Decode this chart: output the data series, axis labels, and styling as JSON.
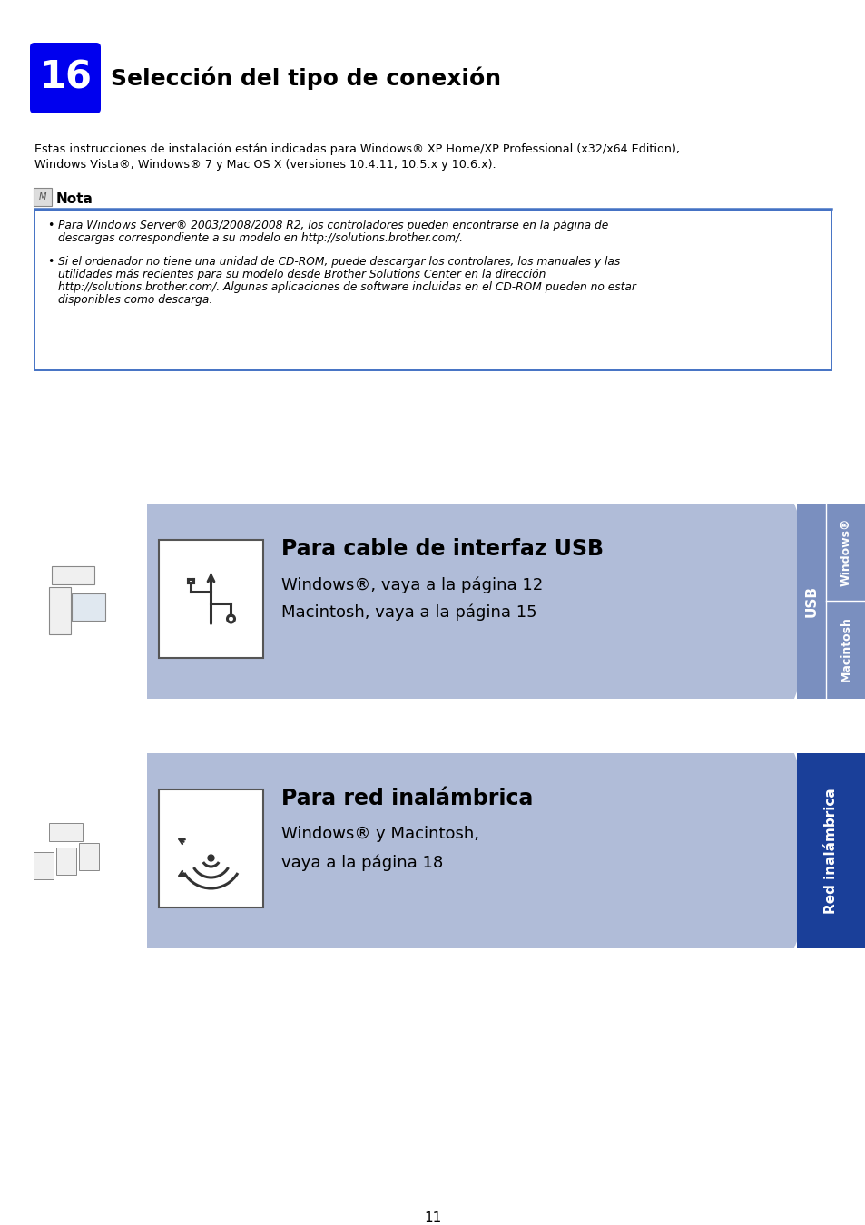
{
  "bg_color": "#ffffff",
  "page_number": "11",
  "step_number": "16",
  "step_bg_color": "#0000ee",
  "step_text_color": "#ffffff",
  "title": "Selección del tipo de conexión",
  "intro_line1": "Estas instrucciones de instalación están indicadas para Windows® XP Home/XP Professional (x32/x64 Edition),",
  "intro_line2": "Windows Vista®, Windows® 7 y Mac OS X (versiones 10.4.11, 10.5.x y 10.6.x).",
  "nota_label": "Nota",
  "nota_border_color": "#4472c4",
  "nota_bullet1_line1": "Para Windows Server® 2003/2008/2008 R2, los controladores pueden encontrarse en la página de",
  "nota_bullet1_line2": "descargas correspondiente a su modelo en http://solutions.brother.com/.",
  "nota_bullet2_line1": "Si el ordenador no tiene una unidad de CD-ROM, puede descargar los controlares, los manuales y las",
  "nota_bullet2_line2": "utilidades más recientes para su modelo desde Brother Solutions Center en la dirección",
  "nota_bullet2_line3": "http://solutions.brother.com/. Algunas aplicaciones de software incluidas en el CD-ROM pueden no estar",
  "nota_bullet2_line4": "disponibles como descarga.",
  "usb_title": "Para cable de interfaz USB",
  "usb_line1": "Windows®, vaya a la página 12",
  "usb_line2": "Macintosh, vaya a la página 15",
  "wifi_title": "Para red inalámbrica",
  "wifi_line1": "Windows® y Macintosh,",
  "wifi_line2": "vaya a la página 18",
  "tab_usb_color": "#7a8fbf",
  "tab_wifi_color": "#1a3f99",
  "tab_windows_text": "Windows®",
  "tab_usb_text": "USB",
  "tab_macintosh_text": "Macintosh",
  "tab_wifi_text": "Red inalámbrica",
  "arrow_fill_usb": "#b0bcd8",
  "arrow_fill_wifi": "#b0bcd8"
}
